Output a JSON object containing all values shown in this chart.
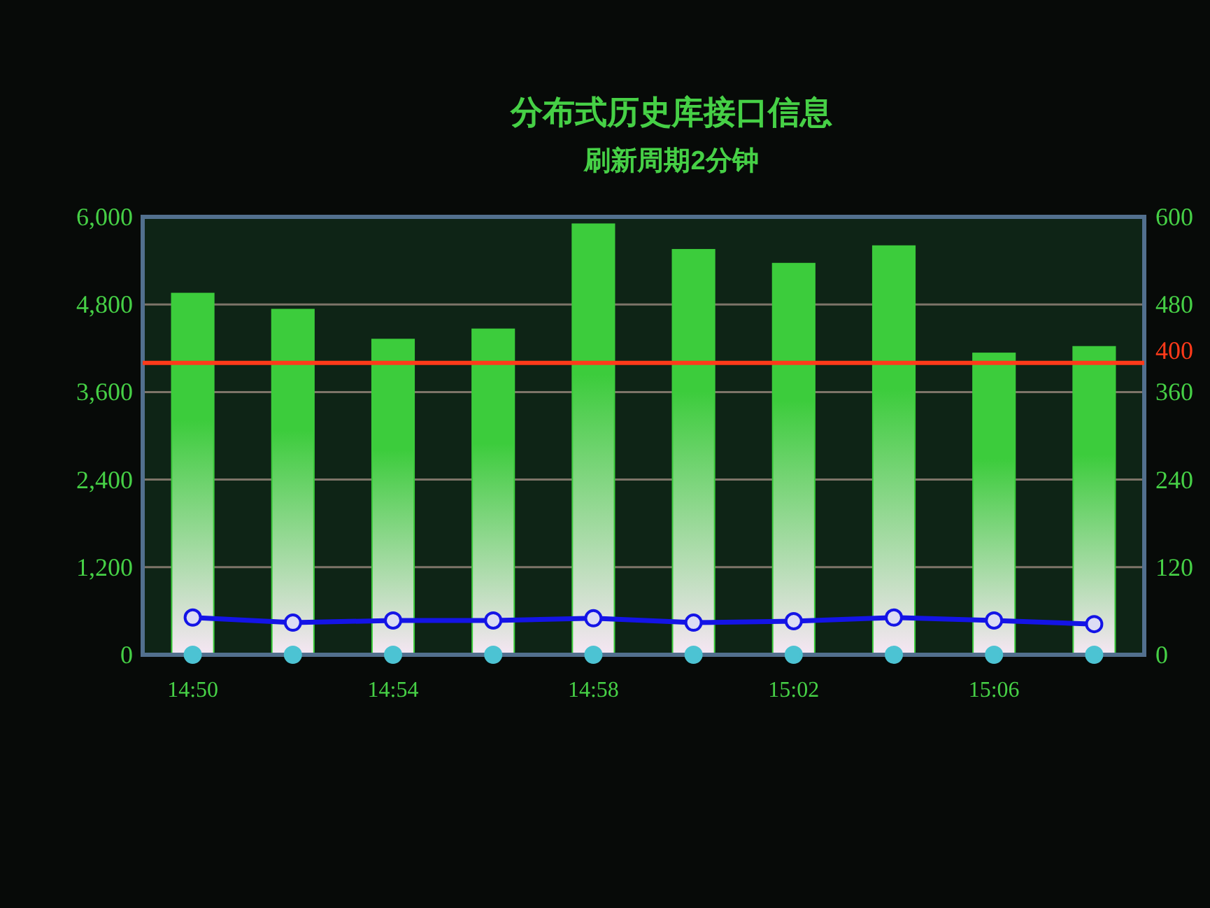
{
  "chart_data": {
    "type": "bar",
    "title": "分布式历史库接口信息",
    "subtitle": "刷新周期2分钟",
    "categories": [
      "14:50",
      null,
      "14:54",
      null,
      "14:58",
      null,
      "15:02",
      null,
      "15:06",
      null
    ],
    "series": [
      {
        "color": "#3ccc3c",
        "values": [
          4950,
          4730,
          4320,
          4460,
          5900,
          5550,
          5360,
          5600,
          4130,
          4220
        ]
      },
      {
        "type": "line",
        "axis": "y2",
        "color": "#1414e6",
        "marker": "circle",
        "values": [
          51,
          44,
          47,
          47,
          50,
          44,
          46,
          51,
          47,
          42
        ]
      },
      {
        "type": "scatter",
        "color": "#4cc3d3",
        "marker": "circle",
        "values": [
          0,
          0,
          0,
          0,
          0,
          0,
          0,
          0,
          0,
          0
        ]
      }
    ],
    "ylim": [
      0,
      6000
    ],
    "yticks": [
      0,
      {
        "value": 1200,
        "label": "1,200"
      },
      {
        "value": 2400,
        "label": "2,400"
      },
      {
        "value": 3600,
        "label": "3,600"
      },
      {
        "value": 4800,
        "label": "4,800"
      },
      {
        "value": 6000,
        "label": "6,000"
      }
    ],
    "y2lim": [
      0,
      600
    ],
    "y2ticks": [
      0,
      120,
      240,
      360,
      480,
      600
    ],
    "ref_lines": [
      {
        "axis": "y2",
        "value": 400,
        "label": "400",
        "color": "#ff3a1a"
      }
    ],
    "grid": "y"
  }
}
